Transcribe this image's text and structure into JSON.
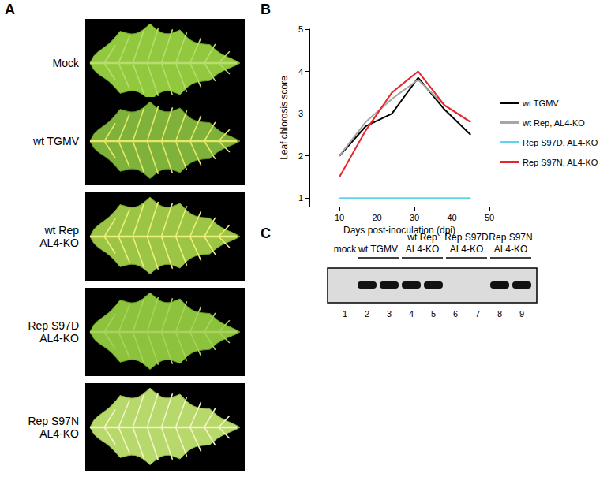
{
  "panel_labels": [
    "A",
    "B",
    "C"
  ],
  "leaf_panel": {
    "rows": [
      [
        "Mock"
      ],
      [
        "wt TGMV"
      ],
      [
        "wt Rep",
        "AL4-KO"
      ],
      [
        "Rep S97D",
        "AL4-KO"
      ],
      [
        "Rep S97N",
        "AL4-KO"
      ]
    ]
  },
  "chart_data": {
    "type": "line",
    "x_label": "Days post-inoculation (dpi)",
    "y_label": "Leaf chlorosis score",
    "x": [
      10,
      17,
      24,
      31,
      38,
      45
    ],
    "series": [
      {
        "name": "wt TGMV",
        "color": "#000000",
        "values": [
          2,
          2.7,
          3,
          3.85,
          3.1,
          2.5
        ]
      },
      {
        "name": "wt Rep, AL4-KO",
        "color": "#a6a6a6",
        "values": [
          2,
          2.8,
          3.35,
          3.8,
          3.2,
          2.8
        ]
      },
      {
        "name": "Rep S97D, AL4-KO",
        "color": "#5fd3ea",
        "values": [
          1,
          1,
          1,
          1,
          1,
          1
        ]
      },
      {
        "name": "Rep S97N, AL4-KO",
        "color": "#e8262a",
        "values": [
          1.5,
          2.6,
          3.5,
          4.0,
          3.2,
          2.8
        ]
      }
    ],
    "xlim": [
      2,
      50
    ],
    "xticks": [
      10,
      20,
      30,
      40,
      50
    ],
    "ylim": [
      0.8,
      5
    ],
    "yticks": [
      1,
      2,
      3,
      4,
      5
    ],
    "grid": false,
    "legend": "right"
  },
  "gel_panel": {
    "groups": [
      {
        "label": [
          "mock"
        ],
        "lanes": [
          1
        ]
      },
      {
        "label": [
          "wt TGMV"
        ],
        "lanes": [
          2,
          3
        ]
      },
      {
        "label": [
          "wt Rep",
          "AL4-KO"
        ],
        "lanes": [
          4,
          5
        ]
      },
      {
        "label": [
          "Rep S97D",
          "AL4-KO"
        ],
        "lanes": [
          6,
          7
        ]
      },
      {
        "label": [
          "Rep S97N",
          "AL4-KO"
        ],
        "lanes": [
          8,
          9
        ]
      }
    ],
    "lanes": [
      {
        "number": 1,
        "band": false
      },
      {
        "number": 2,
        "band": true
      },
      {
        "number": 3,
        "band": true
      },
      {
        "number": 4,
        "band": true
      },
      {
        "number": 5,
        "band": true
      },
      {
        "number": 6,
        "band": false
      },
      {
        "number": 7,
        "band": false
      },
      {
        "number": 8,
        "band": true
      },
      {
        "number": 9,
        "band": true
      }
    ]
  }
}
